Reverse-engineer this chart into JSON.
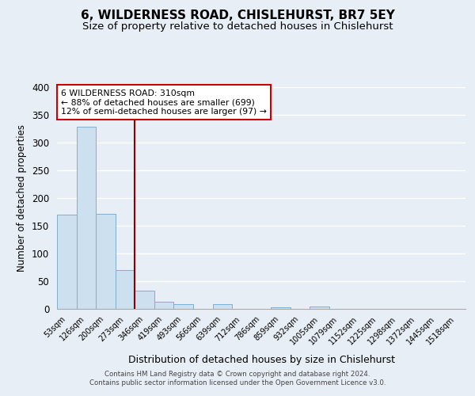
{
  "title": "6, WILDERNESS ROAD, CHISLEHURST, BR7 5EY",
  "subtitle": "Size of property relative to detached houses in Chislehurst",
  "xlabel": "Distribution of detached houses by size in Chislehurst",
  "ylabel": "Number of detached properties",
  "bar_labels": [
    "53sqm",
    "126sqm",
    "200sqm",
    "273sqm",
    "346sqm",
    "419sqm",
    "493sqm",
    "566sqm",
    "639sqm",
    "712sqm",
    "786sqm",
    "859sqm",
    "932sqm",
    "1005sqm",
    "1079sqm",
    "1152sqm",
    "1225sqm",
    "1298sqm",
    "1372sqm",
    "1445sqm",
    "1518sqm"
  ],
  "bar_values": [
    170,
    328,
    171,
    70,
    33,
    13,
    9,
    0,
    9,
    0,
    0,
    3,
    0,
    4,
    0,
    0,
    0,
    0,
    0,
    0,
    0
  ],
  "bar_color": "#cce0f0",
  "bar_edgecolor": "#80afd0",
  "ylim": [
    0,
    400
  ],
  "yticks": [
    0,
    50,
    100,
    150,
    200,
    250,
    300,
    350,
    400
  ],
  "vline_x_index": 3.5,
  "vline_color": "#8b0000",
  "annotation_title": "6 WILDERNESS ROAD: 310sqm",
  "annotation_line1": "← 88% of detached houses are smaller (699)",
  "annotation_line2": "12% of semi-detached houses are larger (97) →",
  "annotation_box_color": "#cc0000",
  "footer_line1": "Contains HM Land Registry data © Crown copyright and database right 2024.",
  "footer_line2": "Contains public sector information licensed under the Open Government Licence v3.0.",
  "background_color": "#e8eef5",
  "grid_color": "#d0dae6",
  "title_fontsize": 11,
  "subtitle_fontsize": 9.5
}
